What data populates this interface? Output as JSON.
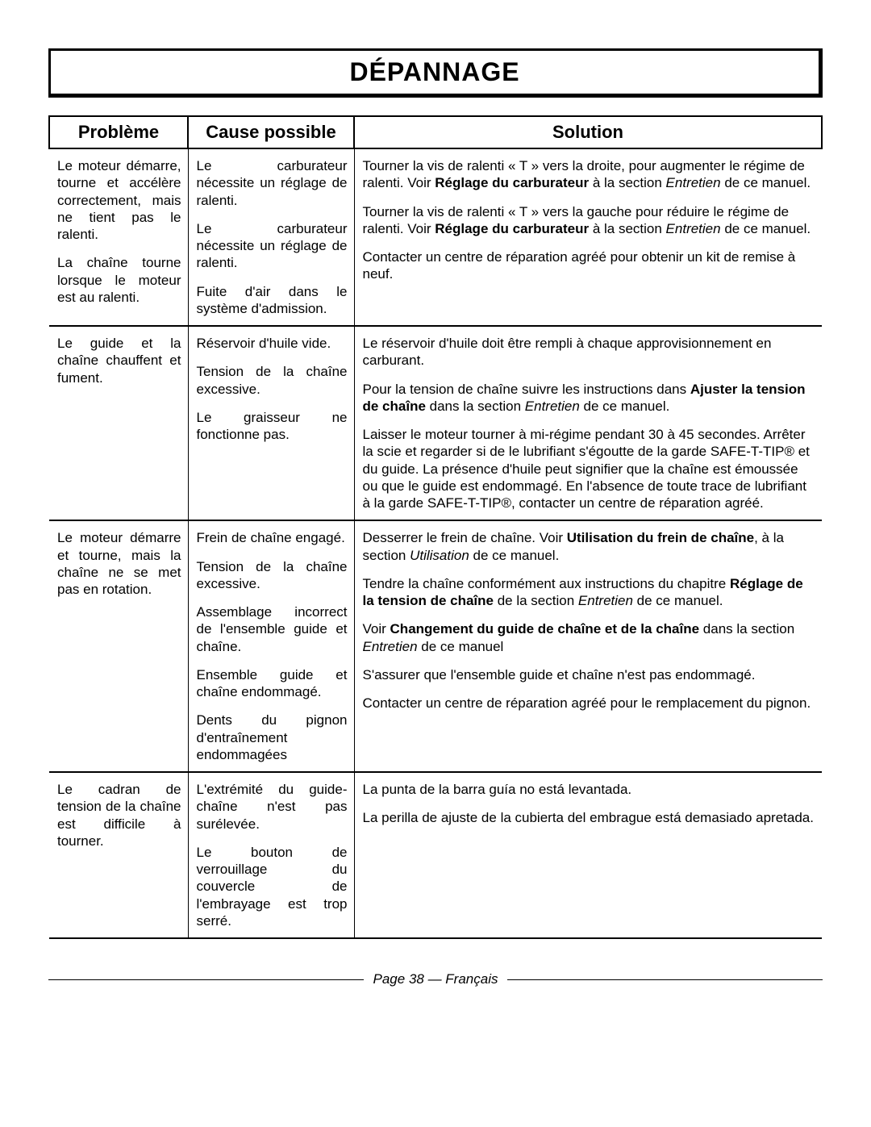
{
  "title": "DÉPANNAGE",
  "headers": {
    "problem": "Problème",
    "cause": "Cause possible",
    "solution": "Solution"
  },
  "rows": {
    "r1": {
      "problem_p1": "Le moteur démarre, tourne et accélère correctement, mais ne tient pas le ralenti.",
      "problem_p2": "La chaîne tourne lorsque le moteur est au ralenti.",
      "cause_p1": "Le carburateur nécessite un réglage de ralenti.",
      "cause_p2": "Le carburateur nécessite un réglage de ralenti.",
      "cause_p3": "Fuite d'air dans le système d'admission.",
      "sol_p1_a": "Tourner la vis de ralenti « T » vers la droite, pour augmenter le régime de ralenti. Voir ",
      "sol_p1_b": "Réglage du carburateur",
      "sol_p1_c": " à la section ",
      "sol_p1_d": "Entretien",
      "sol_p1_e": " de ce manuel.",
      "sol_p2_a": "Tourner la vis de ralenti « T » vers la gauche pour réduire le régime de ralenti. Voir ",
      "sol_p2_b": "Réglage du carburateur",
      "sol_p2_c": " à la section ",
      "sol_p2_d": "Entretien",
      "sol_p2_e": " de ce manuel.",
      "sol_p3": "Contacter un centre de réparation agréé pour obtenir un kit de remise à neuf."
    },
    "r2": {
      "problem": "Le guide et la chaîne chauffent et fument.",
      "cause_p1": "Réservoir d'huile vide.",
      "cause_p2": "Tension de la chaîne excessive.",
      "cause_p3": "Le graisseur ne fonctionne pas.",
      "sol_p1": "Le réservoir d'huile doit être rempli à chaque approvisionnement en carburant.",
      "sol_p2_a": "Pour la tension de chaîne suivre les instructions dans ",
      "sol_p2_b": "Ajuster la tension de chaîne",
      "sol_p2_c": " dans la section ",
      "sol_p2_d": "Entretien",
      "sol_p2_e": " de ce manuel.",
      "sol_p3": "Laisser le moteur tourner à mi-régime pendant 30 à 45 secondes. Arrêter la scie et regarder si de le lubrifiant s'égoutte de la garde SAFE-T-TIP® et du guide. La présence d'huile peut signifier que la chaîne est émoussée ou que le guide est endommagé. En l'absence de toute trace de lubrifiant à la garde SAFE-T-TIP®, contacter un centre de réparation agréé."
    },
    "r3": {
      "problem": "Le moteur démarre et tourne, mais la chaîne ne se met pas en rotation.",
      "cause_p1": "Frein de chaîne engagé.",
      "cause_p2": "Tension de la chaîne excessive.",
      "cause_p3": "Assemblage incorrect de l'ensemble guide et chaîne.",
      "cause_p4": "Ensemble guide et chaîne endommagé.",
      "cause_p5": "Dents du pignon d'entraînement endommagées",
      "sol_p1_a": "Desserrer le frein de chaîne. Voir ",
      "sol_p1_b": "Utilisation du frein de chaîne",
      "sol_p1_c": ", à la section ",
      "sol_p1_d": "Utilisation",
      "sol_p1_e": " de ce manuel.",
      "sol_p2_a": "Tendre la chaîne conformément aux instructions du chapitre ",
      "sol_p2_b": "Réglage de la tension de chaîne",
      "sol_p2_c": " de la section ",
      "sol_p2_d": "Entretien",
      "sol_p2_e": " de ce manuel.",
      "sol_p3_a": "Voir ",
      "sol_p3_b": "Changement du guide de chaîne et de la chaîne",
      "sol_p3_c": " dans la section ",
      "sol_p3_d": "Entretien",
      "sol_p3_e": " de ce manuel",
      "sol_p4": "S'assurer que l'ensemble guide et chaîne n'est pas endommagé.",
      "sol_p5": "Contacter un centre de réparation agréé pour le remplacement du pignon."
    },
    "r4": {
      "problem": "Le cadran de tension de la chaîne est difficile à tourner.",
      "cause_p1": "L'extrémité du guide-chaîne n'est pas surélevée.",
      "cause_p2": "Le bouton de verrouillage du couvercle de l'embrayage est trop serré.",
      "sol_p1": "La punta de la barra guía no está levantada.",
      "sol_p2": "La perilla de ajuste de la cubierta del embrague está demasiado apretada."
    }
  },
  "footer": "Page 38  — Français"
}
